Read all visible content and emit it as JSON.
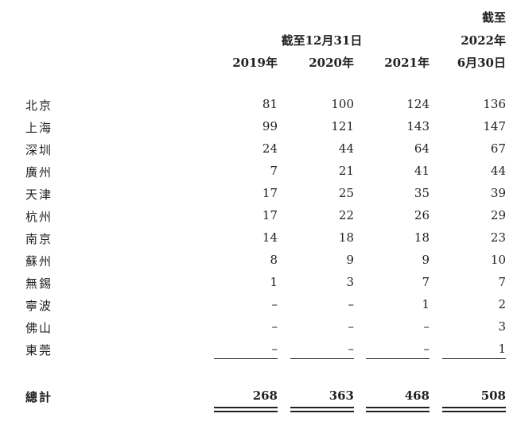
{
  "header": {
    "period_label": "截至12月31日",
    "jun_line1": "截至",
    "jun_line2": "2022年",
    "jun_line3": "6月30日",
    "columns": [
      "2019年",
      "2020年",
      "2021年"
    ]
  },
  "rows": [
    {
      "city": "北京",
      "values": [
        "81",
        "100",
        "124",
        "136"
      ]
    },
    {
      "city": "上海",
      "values": [
        "99",
        "121",
        "143",
        "147"
      ]
    },
    {
      "city": "深圳",
      "values": [
        "24",
        "44",
        "64",
        "67"
      ]
    },
    {
      "city": "廣州",
      "values": [
        "7",
        "21",
        "41",
        "44"
      ]
    },
    {
      "city": "天津",
      "values": [
        "17",
        "25",
        "35",
        "39"
      ]
    },
    {
      "city": "杭州",
      "values": [
        "17",
        "22",
        "26",
        "29"
      ]
    },
    {
      "city": "南京",
      "values": [
        "14",
        "18",
        "18",
        "23"
      ]
    },
    {
      "city": "蘇州",
      "values": [
        "8",
        "9",
        "9",
        "10"
      ]
    },
    {
      "city": "無錫",
      "values": [
        "1",
        "3",
        "7",
        "7"
      ]
    },
    {
      "city": "寧波",
      "values": [
        "–",
        "–",
        "1",
        "2"
      ]
    },
    {
      "city": "佛山",
      "values": [
        "–",
        "–",
        "–",
        "3"
      ]
    },
    {
      "city": "東莞",
      "values": [
        "–",
        "–",
        "–",
        "1"
      ]
    }
  ],
  "total": {
    "label": "總計",
    "values": [
      "268",
      "363",
      "468",
      "508"
    ]
  }
}
